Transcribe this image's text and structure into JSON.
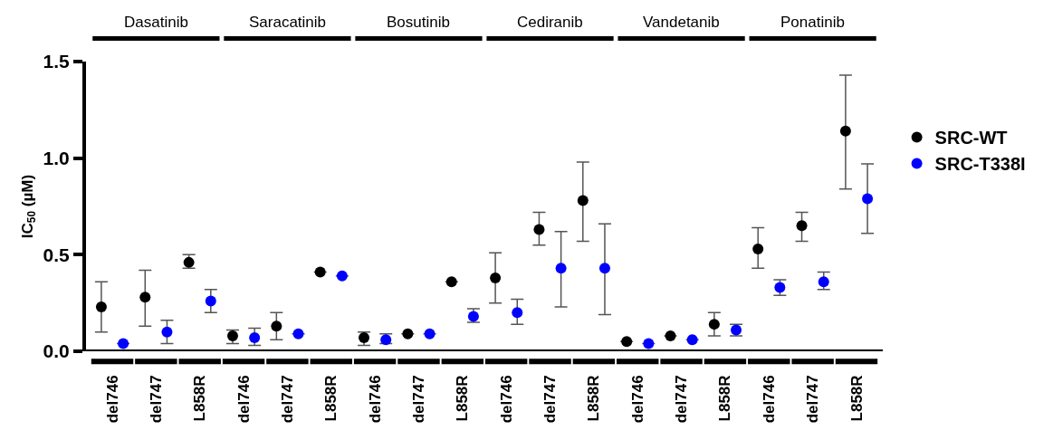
{
  "chart_data": {
    "type": "scatter",
    "ylabel": "IC$_{50}$ (µM)",
    "categories": [
      "del746",
      "del747",
      "L858R",
      "del746",
      "del747",
      "L858R",
      "del746",
      "del747",
      "L858R",
      "del746",
      "del747",
      "L858R",
      "del746",
      "del747",
      "L858R",
      "del746",
      "del747",
      "L858R"
    ],
    "annotations": [
      "Dasatinib",
      "Saracatinib",
      "Bosutinib",
      "Cediranib",
      "Vandetanib",
      "Ponatinib"
    ],
    "series": [
      {
        "name": "SRC-WT",
        "color": "#000000",
        "values": [
          0.23,
          0.28,
          0.46,
          0.08,
          0.13,
          0.41,
          0.07,
          0.09,
          0.36,
          0.38,
          0.63,
          0.78,
          0.05,
          0.08,
          0.14,
          0.53,
          0.65,
          1.14
        ],
        "errors": [
          [
            0.1,
            0.36
          ],
          [
            0.13,
            0.42
          ],
          [
            0.43,
            0.5
          ],
          [
            0.04,
            0.11
          ],
          [
            0.06,
            0.2
          ],
          null,
          [
            0.03,
            0.1
          ],
          null,
          null,
          [
            0.25,
            0.51
          ],
          [
            0.55,
            0.72
          ],
          [
            0.57,
            0.98
          ],
          null,
          null,
          [
            0.08,
            0.2
          ],
          [
            0.43,
            0.64
          ],
          [
            0.57,
            0.72
          ],
          [
            0.84,
            1.43
          ]
        ]
      },
      {
        "name": "SRC-T338I",
        "color": "#0000ff",
        "values": [
          0.04,
          0.1,
          0.26,
          0.07,
          0.09,
          0.39,
          0.06,
          0.09,
          0.18,
          0.2,
          0.43,
          0.43,
          0.04,
          0.06,
          0.11,
          0.33,
          0.36,
          0.79
        ],
        "errors": [
          null,
          [
            0.04,
            0.16
          ],
          [
            0.2,
            0.32
          ],
          [
            0.03,
            0.12
          ],
          null,
          null,
          [
            0.04,
            0.09
          ],
          null,
          [
            0.15,
            0.22
          ],
          [
            0.14,
            0.27
          ],
          [
            0.23,
            0.62
          ],
          [
            0.19,
            0.66
          ],
          null,
          null,
          [
            0.08,
            0.14
          ],
          [
            0.29,
            0.37
          ],
          [
            0.32,
            0.41
          ],
          [
            0.61,
            0.97
          ]
        ]
      }
    ],
    "ylim": [
      0,
      1.5
    ],
    "yticks": [
      {
        "value": 0,
        "label": "0.0"
      },
      {
        "value": 0.5,
        "label": "0.5"
      },
      {
        "value": 1,
        "label": "1.0"
      },
      {
        "value": 1.5,
        "label": "1.5"
      }
    ],
    "grid": false,
    "legend": "right",
    "marker": "circle"
  }
}
